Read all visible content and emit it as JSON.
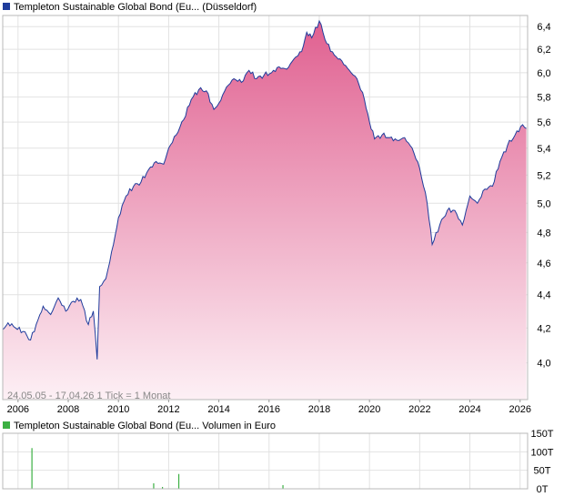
{
  "chart_data": [
    {
      "type": "area",
      "legend": "Templeton Sustainable Global Bond (Eu...  (Düsseldorf)",
      "note": "24.05.05 - 17.04.26   1 Tick = 1 Monat",
      "x_ticks": [
        "2006",
        "2008",
        "2010",
        "2012",
        "2014",
        "2016",
        "2018",
        "2020",
        "2022",
        "2024",
        "2026"
      ],
      "y_ticks": [
        "4,0",
        "4,2",
        "4,4",
        "4,6",
        "4,8",
        "5,0",
        "5,2",
        "5,4",
        "5,6",
        "5,8",
        "6,0",
        "6,2",
        "6,4"
      ],
      "xlim": [
        2005.39,
        2026.3
      ],
      "ylim": [
        3.8,
        6.5
      ],
      "y_scale": "log",
      "grid": true,
      "colors": {
        "line": "#1f3c9c",
        "fill_top": "#e06090",
        "fill_bottom": "#fdf0f5"
      },
      "x": [
        2005.39,
        2005.6,
        2005.9,
        2006.2,
        2006.5,
        2006.8,
        2007.0,
        2007.3,
        2007.6,
        2007.9,
        2008.2,
        2008.5,
        2008.8,
        2009.0,
        2009.15,
        2009.25,
        2009.5,
        2009.8,
        2010.0,
        2010.3,
        2010.6,
        2010.9,
        2011.2,
        2011.5,
        2011.8,
        2012.0,
        2012.3,
        2012.6,
        2012.9,
        2013.2,
        2013.5,
        2013.8,
        2014.0,
        2014.3,
        2014.6,
        2014.9,
        2015.2,
        2015.5,
        2015.8,
        2016.1,
        2016.4,
        2016.7,
        2017.0,
        2017.3,
        2017.5,
        2017.7,
        2018.0,
        2018.3,
        2018.6,
        2018.9,
        2019.2,
        2019.5,
        2019.8,
        2020.0,
        2020.2,
        2020.5,
        2020.8,
        2021.1,
        2021.4,
        2021.7,
        2022.0,
        2022.3,
        2022.5,
        2022.8,
        2023.1,
        2023.4,
        2023.7,
        2024.0,
        2024.3,
        2024.6,
        2024.9,
        2025.2,
        2025.5,
        2025.8,
        2026.1,
        2026.25
      ],
      "values": [
        4.19,
        4.23,
        4.2,
        4.18,
        4.13,
        4.25,
        4.33,
        4.28,
        4.38,
        4.3,
        4.36,
        4.37,
        4.22,
        4.3,
        4.02,
        4.45,
        4.5,
        4.72,
        4.9,
        5.05,
        5.12,
        5.15,
        5.24,
        5.3,
        5.28,
        5.4,
        5.5,
        5.62,
        5.78,
        5.86,
        5.85,
        5.7,
        5.75,
        5.88,
        5.95,
        5.92,
        6.02,
        5.95,
        5.98,
        6.0,
        6.05,
        6.03,
        6.12,
        6.18,
        6.35,
        6.3,
        6.45,
        6.25,
        6.15,
        6.1,
        6.02,
        5.95,
        5.78,
        5.6,
        5.47,
        5.5,
        5.48,
        5.46,
        5.48,
        5.4,
        5.25,
        5.0,
        4.72,
        4.85,
        4.95,
        4.95,
        4.85,
        5.05,
        5.0,
        5.1,
        5.12,
        5.3,
        5.42,
        5.5,
        5.58,
        5.55
      ]
    },
    {
      "type": "bar",
      "legend": "Templeton Sustainable Global Bond (Eu...  Volumen in Euro",
      "y_ticks": [
        "0T",
        "50T",
        "100T",
        "150T"
      ],
      "ylim": [
        0,
        150
      ],
      "colors": {
        "bar": "#3cb043"
      },
      "x": [
        2006.55,
        2011.4,
        2011.75,
        2012.4,
        2016.55
      ],
      "values": [
        110,
        15,
        5,
        40,
        10
      ]
    }
  ]
}
